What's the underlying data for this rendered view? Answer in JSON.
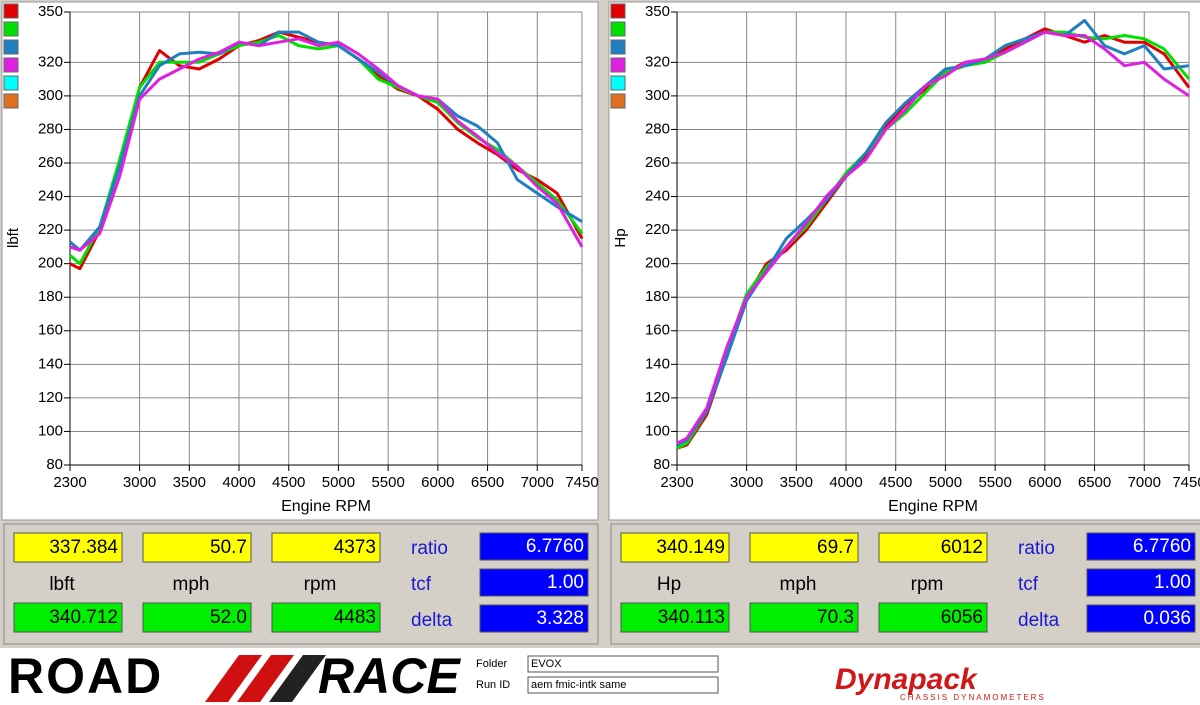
{
  "chart_data": [
    {
      "type": "line",
      "ylabel": "lbft",
      "xlabel": "Engine RPM",
      "x": [
        2300,
        2400,
        2600,
        2800,
        3000,
        3200,
        3400,
        3600,
        3800,
        4000,
        4200,
        4400,
        4600,
        4800,
        5000,
        5200,
        5400,
        5600,
        5800,
        6000,
        6200,
        6400,
        6600,
        6800,
        7000,
        7200,
        7450
      ],
      "xlim": [
        2300,
        7450
      ],
      "xticks": [
        2300,
        3000,
        3500,
        4000,
        4500,
        5000,
        5500,
        6000,
        6500,
        7000,
        7450
      ],
      "ylim": [
        80,
        350
      ],
      "yticks": [
        80,
        100,
        120,
        140,
        160,
        180,
        200,
        220,
        240,
        260,
        280,
        300,
        320,
        350
      ],
      "grid": true,
      "legend_colors": [
        "#e00000",
        "#00e000",
        "#1f7fc0",
        "#e020e0",
        "#00ffff",
        "#e07020"
      ],
      "series": [
        {
          "color": "#e00000",
          "values": [
            200,
            197,
            220,
            260,
            305,
            327,
            318,
            316,
            322,
            330,
            333,
            338,
            335,
            332,
            330,
            322,
            312,
            304,
            300,
            292,
            280,
            272,
            265,
            256,
            250,
            242,
            215
          ]
        },
        {
          "color": "#00e000",
          "values": [
            205,
            200,
            222,
            262,
            305,
            320,
            320,
            320,
            325,
            330,
            332,
            336,
            330,
            328,
            330,
            322,
            310,
            305,
            300,
            296,
            284,
            275,
            268,
            258,
            248,
            238,
            218
          ]
        },
        {
          "color": "#1f7fc0",
          "values": [
            213,
            208,
            222,
            258,
            300,
            318,
            325,
            326,
            325,
            332,
            330,
            338,
            338,
            332,
            330,
            322,
            314,
            306,
            300,
            298,
            288,
            282,
            272,
            250,
            242,
            234,
            225
          ]
        },
        {
          "color": "#e020e0",
          "values": [
            210,
            208,
            218,
            252,
            298,
            310,
            316,
            322,
            326,
            332,
            330,
            332,
            334,
            330,
            332,
            325,
            316,
            306,
            300,
            298,
            285,
            276,
            266,
            258,
            246,
            236,
            210
          ]
        }
      ]
    },
    {
      "type": "line",
      "ylabel": "Hp",
      "xlabel": "Engine RPM",
      "x": [
        2300,
        2400,
        2600,
        2800,
        3000,
        3200,
        3400,
        3600,
        3800,
        4000,
        4200,
        4400,
        4600,
        4800,
        5000,
        5200,
        5400,
        5600,
        5800,
        6000,
        6200,
        6400,
        6600,
        6800,
        7000,
        7200,
        7450
      ],
      "xlim": [
        2300,
        7450
      ],
      "xticks": [
        2300,
        3000,
        3500,
        4000,
        4500,
        5000,
        5500,
        6000,
        6500,
        7000,
        7450
      ],
      "ylim": [
        80,
        350
      ],
      "yticks": [
        80,
        100,
        120,
        140,
        160,
        180,
        200,
        220,
        240,
        260,
        280,
        300,
        320,
        350
      ],
      "grid": true,
      "legend_colors": [
        "#e00000",
        "#00e000",
        "#1f7fc0",
        "#e020e0",
        "#00ffff",
        "#e07020"
      ],
      "series": [
        {
          "color": "#e00000",
          "values": [
            90,
            92,
            110,
            145,
            180,
            200,
            208,
            220,
            236,
            252,
            264,
            282,
            295,
            304,
            314,
            320,
            322,
            328,
            334,
            340,
            336,
            332,
            336,
            332,
            332,
            325,
            305
          ]
        },
        {
          "color": "#00e000",
          "values": [
            90,
            93,
            112,
            148,
            182,
            198,
            210,
            222,
            238,
            254,
            266,
            280,
            290,
            302,
            314,
            318,
            320,
            326,
            332,
            338,
            338,
            335,
            334,
            336,
            334,
            328,
            310
          ]
        },
        {
          "color": "#1f7fc0",
          "values": [
            92,
            95,
            112,
            144,
            178,
            196,
            215,
            226,
            238,
            252,
            266,
            284,
            296,
            306,
            316,
            318,
            322,
            330,
            334,
            338,
            336,
            345,
            330,
            325,
            330,
            316,
            318
          ]
        },
        {
          "color": "#e020e0",
          "values": [
            93,
            96,
            114,
            150,
            180,
            195,
            210,
            224,
            240,
            252,
            262,
            280,
            292,
            306,
            312,
            320,
            322,
            326,
            332,
            338,
            336,
            336,
            328,
            318,
            320,
            310,
            300
          ]
        }
      ]
    }
  ],
  "panels": [
    {
      "top": [
        "337.384",
        "50.7",
        "4373"
      ],
      "labels": [
        "lbft",
        "mph",
        "rpm"
      ],
      "bottom": [
        "340.712",
        "52.0",
        "4483"
      ],
      "side_labels": [
        "ratio",
        "tcf",
        "delta"
      ],
      "side_values": [
        "6.7760",
        "1.00",
        "3.328"
      ]
    },
    {
      "top": [
        "340.149",
        "69.7",
        "6012"
      ],
      "labels": [
        "Hp",
        "mph",
        "rpm"
      ],
      "bottom": [
        "340.113",
        "70.3",
        "6056"
      ],
      "side_labels": [
        "ratio",
        "tcf",
        "delta"
      ],
      "side_values": [
        "6.7760",
        "1.00",
        "0.036"
      ]
    }
  ],
  "footer": {
    "logo_left": "ROAD",
    "logo_right": "RACE",
    "folder_label": "Folder",
    "folder": "EVOX",
    "run_label": "Run ID",
    "run": "aem fmic-intk same",
    "brand": "Dynapack",
    "brand_sub": "CHASSIS DYNAMOMETERS"
  }
}
